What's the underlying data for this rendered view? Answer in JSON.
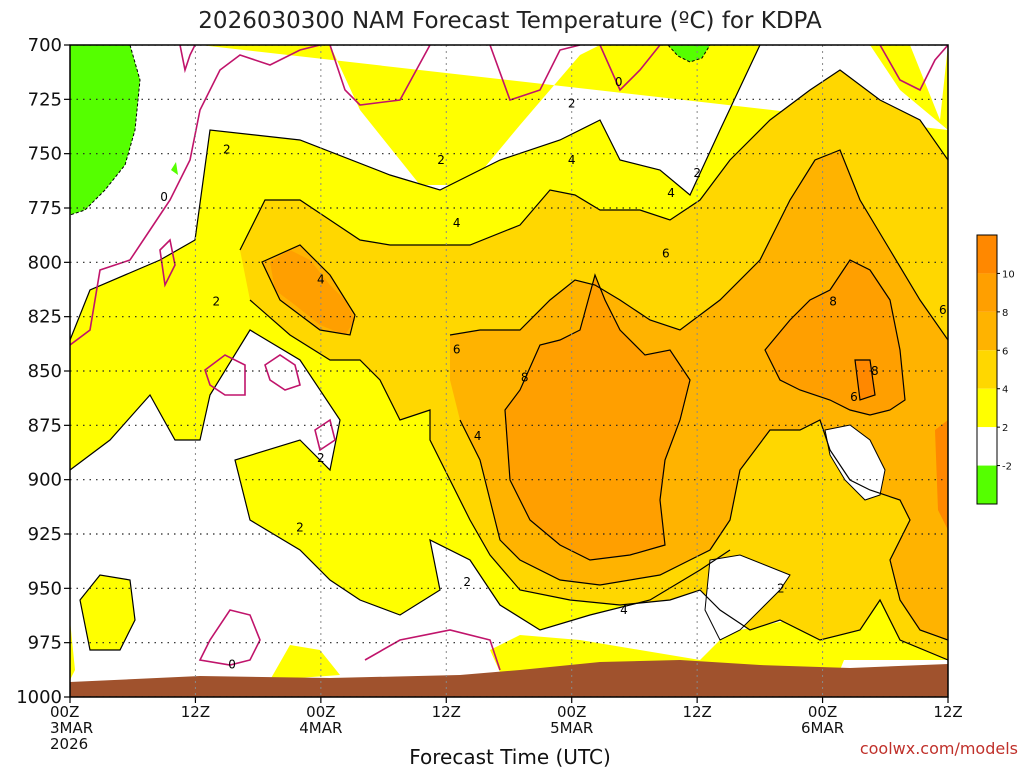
{
  "chart_data": {
    "type": "heatmap",
    "title": "2026030300 NAM Forecast Temperature (ºC) for KDPA",
    "xlabel": "Forecast Time (UTC)",
    "ylabel": "",
    "y_ticks": [
      "700",
      "725",
      "750",
      "775",
      "800",
      "825",
      "850",
      "875",
      "900",
      "925",
      "950",
      "975",
      "1000"
    ],
    "y_range": [
      700,
      1000
    ],
    "x_range_hours": [
      0,
      84
    ],
    "x_ticks": [
      {
        "h": 0,
        "lines": [
          "00Z",
          "3MAR",
          "2026"
        ]
      },
      {
        "h": 12,
        "lines": [
          "12Z"
        ]
      },
      {
        "h": 24,
        "lines": [
          "00Z",
          "4MAR"
        ]
      },
      {
        "h": 36,
        "lines": [
          "12Z"
        ]
      },
      {
        "h": 48,
        "lines": [
          "00Z",
          "5MAR"
        ]
      },
      {
        "h": 60,
        "lines": [
          "12Z"
        ]
      },
      {
        "h": 72,
        "lines": [
          "00Z",
          "6MAR"
        ]
      },
      {
        "h": 84,
        "lines": [
          "12Z"
        ]
      }
    ],
    "grid": true,
    "colorbar": {
      "position": "right",
      "levels": [
        -2,
        2,
        4,
        6,
        8,
        10
      ],
      "labels": [
        "-2",
        "2",
        "4",
        "6",
        "8",
        "10"
      ],
      "colors": [
        "#55ff00",
        "#ffffff",
        "#ffff00",
        "#ffd700",
        "#ffb300",
        "#ff9f00",
        "#ff8800"
      ]
    },
    "contour_labels": [
      {
        "text": "2",
        "h": 15.0,
        "p": 748
      },
      {
        "text": "0",
        "h": 9.0,
        "p": 770
      },
      {
        "text": "2",
        "h": 14.0,
        "p": 818
      },
      {
        "text": "4",
        "h": 24.0,
        "p": 808
      },
      {
        "text": "2",
        "h": 35.5,
        "p": 753
      },
      {
        "text": "4",
        "h": 37.0,
        "p": 782
      },
      {
        "text": "2",
        "h": 48.0,
        "p": 727
      },
      {
        "text": "4",
        "h": 48.0,
        "p": 753
      },
      {
        "text": "0",
        "h": 52.5,
        "p": 717
      },
      {
        "text": "4",
        "h": 57.5,
        "p": 768
      },
      {
        "text": "2",
        "h": 60.0,
        "p": 759
      },
      {
        "text": "6",
        "h": 57.0,
        "p": 796
      },
      {
        "text": "6",
        "h": 37.0,
        "p": 840
      },
      {
        "text": "8",
        "h": 43.5,
        "p": 853
      },
      {
        "text": "4",
        "h": 39.0,
        "p": 880
      },
      {
        "text": "2",
        "h": 24.0,
        "p": 890
      },
      {
        "text": "2",
        "h": 22.0,
        "p": 922
      },
      {
        "text": "2",
        "h": 38.0,
        "p": 947
      },
      {
        "text": "4",
        "h": 53.0,
        "p": 960
      },
      {
        "text": "2",
        "h": 68.0,
        "p": 950
      },
      {
        "text": "8",
        "h": 73.0,
        "p": 818
      },
      {
        "text": "8",
        "h": 77.0,
        "p": 850
      },
      {
        "text": "6",
        "h": 75.0,
        "p": 862
      },
      {
        "text": "6",
        "h": 83.5,
        "p": 822
      },
      {
        "text": "0",
        "h": 15.5,
        "p": 985
      }
    ],
    "regions": [
      {
        "value": "4 to 6",
        "approx_hours": [
          17,
          48
        ],
        "approx_pressure": [
          760,
          840
        ]
      },
      {
        "value": "6 to 8",
        "approx_hours": [
          38,
          62
        ],
        "approx_pressure": [
          790,
          950
        ]
      },
      {
        "value": "8 to 10",
        "approx_hours": [
          44,
          58
        ],
        "approx_pressure": [
          820,
          925
        ]
      },
      {
        "value": "-2 to 0",
        "approx_hours": [
          0,
          7
        ],
        "approx_pressure": [
          700,
          765
        ]
      },
      {
        "value": "8 to 10",
        "approx_hours": [
          68,
          80
        ],
        "approx_pressure": [
          775,
          855
        ]
      }
    ]
  },
  "credit": "coolwx.com/models",
  "colors": {
    "ground": "#a0522d",
    "contour": "#000000",
    "zero_contour": "#c0146b",
    "frame": "#000000"
  }
}
